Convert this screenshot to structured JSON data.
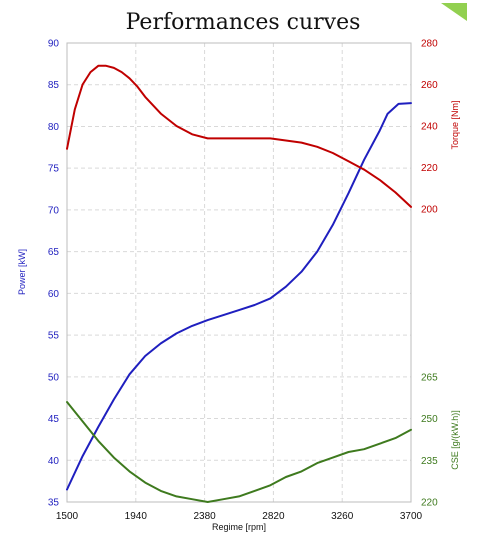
{
  "chart_data": {
    "type": "line",
    "title": "Performances curves",
    "xlabel": "Regime [rpm]",
    "x_ticks": [
      1500,
      1940,
      2380,
      2820,
      3260,
      3700
    ],
    "xlim": [
      1500,
      3700
    ],
    "grid": true,
    "axes": {
      "power": {
        "label": "Power [kW]",
        "ylim": [
          35,
          90
        ],
        "ticks": [
          35,
          40,
          45,
          50,
          55,
          60,
          65,
          70,
          75,
          80,
          85,
          90
        ],
        "color": "#1f1fbf"
      },
      "torque": {
        "label": "Torque [Nm]",
        "ylim": [
          200,
          280
        ],
        "ticks": [
          200,
          220,
          240,
          260,
          280
        ],
        "color": "#c00000"
      },
      "cse": {
        "label": "CSE [g/(kW.h)]",
        "ylim": [
          220,
          265
        ],
        "ticks": [
          220,
          235,
          250,
          265
        ],
        "color": "#3e7a1e"
      }
    },
    "series": [
      {
        "axis": "power",
        "color": "#1f1fbf",
        "x": [
          1500,
          1600,
          1700,
          1800,
          1900,
          2000,
          2100,
          2200,
          2300,
          2400,
          2500,
          2600,
          2700,
          2800,
          2900,
          3000,
          3100,
          3200,
          3300,
          3400,
          3500,
          3550,
          3620,
          3700
        ],
        "values": [
          36.5,
          40.5,
          44.0,
          47.3,
          50.3,
          52.5,
          54.0,
          55.2,
          56.1,
          56.8,
          57.4,
          58.0,
          58.6,
          59.4,
          60.8,
          62.6,
          65.0,
          68.2,
          72.0,
          76.0,
          79.5,
          81.5,
          82.7,
          82.8
        ]
      },
      {
        "axis": "torque",
        "color": "#c00000",
        "x": [
          1500,
          1550,
          1600,
          1650,
          1700,
          1750,
          1800,
          1850,
          1900,
          1950,
          2000,
          2100,
          2200,
          2300,
          2400,
          2500,
          2600,
          2700,
          2800,
          2900,
          3000,
          3100,
          3200,
          3300,
          3400,
          3500,
          3600,
          3700
        ],
        "values": [
          229,
          248,
          260,
          266,
          269,
          269,
          268,
          266,
          263,
          259,
          254,
          246,
          240,
          236,
          234,
          234,
          234,
          234,
          234,
          233,
          232,
          230,
          227,
          223,
          219,
          214,
          208,
          201
        ]
      },
      {
        "axis": "cse",
        "color": "#3e7a1e",
        "x": [
          1500,
          1600,
          1700,
          1800,
          1900,
          2000,
          2100,
          2200,
          2300,
          2400,
          2500,
          2600,
          2700,
          2800,
          2900,
          3000,
          3100,
          3200,
          3300,
          3400,
          3500,
          3600,
          3700
        ],
        "values": [
          256,
          249,
          242,
          236,
          231,
          227,
          224,
          222,
          221,
          220,
          221,
          222,
          224,
          226,
          229,
          231,
          234,
          236,
          238,
          239,
          241,
          243,
          246
        ]
      }
    ]
  }
}
